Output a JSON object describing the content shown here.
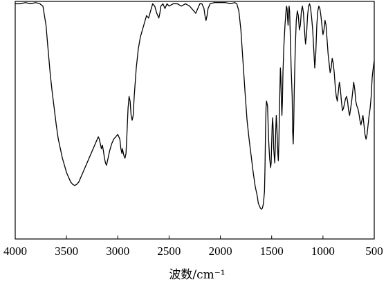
{
  "chart_data": {
    "type": "line",
    "title": "",
    "xlabel": "波数/cm⁻¹",
    "ylabel": "",
    "xlim": [
      4000,
      500
    ],
    "x_reversed": true,
    "ylim": [
      0,
      100
    ],
    "grid": false,
    "legend": "none",
    "x_ticks": [
      "4000",
      "3500",
      "3000",
      "2500",
      "2000",
      "1500",
      "1000",
      "500"
    ],
    "x_tick_values": [
      4000,
      3500,
      3000,
      2500,
      2000,
      1500,
      1000,
      500
    ],
    "series": [
      {
        "line_color": "#000000",
        "points": [
          [
            4000,
            99
          ],
          [
            3950,
            99
          ],
          [
            3900,
            99.5
          ],
          [
            3850,
            99
          ],
          [
            3800,
            99.5
          ],
          [
            3760,
            99
          ],
          [
            3730,
            98
          ],
          [
            3700,
            90
          ],
          [
            3680,
            80
          ],
          [
            3660,
            70
          ],
          [
            3640,
            62
          ],
          [
            3620,
            55
          ],
          [
            3600,
            48
          ],
          [
            3580,
            42
          ],
          [
            3560,
            38
          ],
          [
            3540,
            34
          ],
          [
            3520,
            31
          ],
          [
            3500,
            28
          ],
          [
            3480,
            26
          ],
          [
            3460,
            24
          ],
          [
            3440,
            23
          ],
          [
            3420,
            22.5
          ],
          [
            3400,
            23
          ],
          [
            3380,
            24
          ],
          [
            3360,
            26
          ],
          [
            3340,
            28
          ],
          [
            3320,
            30
          ],
          [
            3300,
            32
          ],
          [
            3280,
            34
          ],
          [
            3260,
            36
          ],
          [
            3240,
            38
          ],
          [
            3220,
            40
          ],
          [
            3200,
            42
          ],
          [
            3190,
            43
          ],
          [
            3180,
            42
          ],
          [
            3170,
            40
          ],
          [
            3160,
            38
          ],
          [
            3150,
            39.5
          ],
          [
            3140,
            37
          ],
          [
            3130,
            34
          ],
          [
            3120,
            32
          ],
          [
            3110,
            31
          ],
          [
            3100,
            33
          ],
          [
            3090,
            35
          ],
          [
            3080,
            37
          ],
          [
            3060,
            40
          ],
          [
            3040,
            42
          ],
          [
            3020,
            43
          ],
          [
            3000,
            44
          ],
          [
            2980,
            42
          ],
          [
            2970,
            38
          ],
          [
            2960,
            36
          ],
          [
            2955,
            38
          ],
          [
            2950,
            37
          ],
          [
            2940,
            35
          ],
          [
            2930,
            34
          ],
          [
            2920,
            36
          ],
          [
            2910,
            45
          ],
          [
            2900,
            55
          ],
          [
            2890,
            60
          ],
          [
            2880,
            58
          ],
          [
            2870,
            52
          ],
          [
            2860,
            50
          ],
          [
            2850,
            52
          ],
          [
            2840,
            60
          ],
          [
            2820,
            72
          ],
          [
            2800,
            80
          ],
          [
            2780,
            85
          ],
          [
            2760,
            88
          ],
          [
            2740,
            91
          ],
          [
            2720,
            94
          ],
          [
            2700,
            93
          ],
          [
            2680,
            96
          ],
          [
            2660,
            99
          ],
          [
            2640,
            98
          ],
          [
            2620,
            95
          ],
          [
            2600,
            93
          ],
          [
            2590,
            95
          ],
          [
            2580,
            98
          ],
          [
            2560,
            99
          ],
          [
            2540,
            97
          ],
          [
            2520,
            99
          ],
          [
            2500,
            98
          ],
          [
            2460,
            99
          ],
          [
            2420,
            99
          ],
          [
            2380,
            98
          ],
          [
            2340,
            99
          ],
          [
            2300,
            98
          ],
          [
            2260,
            96
          ],
          [
            2240,
            95
          ],
          [
            2220,
            97
          ],
          [
            2200,
            99
          ],
          [
            2180,
            99
          ],
          [
            2160,
            97
          ],
          [
            2150,
            94
          ],
          [
            2140,
            92
          ],
          [
            2130,
            94
          ],
          [
            2120,
            97
          ],
          [
            2100,
            99
          ],
          [
            2060,
            99.5
          ],
          [
            2000,
            99.5
          ],
          [
            1950,
            99.5
          ],
          [
            1900,
            99
          ],
          [
            1860,
            99.5
          ],
          [
            1840,
            99
          ],
          [
            1820,
            96
          ],
          [
            1800,
            88
          ],
          [
            1780,
            75
          ],
          [
            1760,
            62
          ],
          [
            1740,
            50
          ],
          [
            1720,
            42
          ],
          [
            1700,
            35
          ],
          [
            1680,
            28
          ],
          [
            1660,
            22
          ],
          [
            1640,
            18
          ],
          [
            1630,
            15
          ],
          [
            1620,
            14
          ],
          [
            1610,
            13
          ],
          [
            1600,
            12.5
          ],
          [
            1590,
            13
          ],
          [
            1580,
            15
          ],
          [
            1570,
            20
          ],
          [
            1565,
            30
          ],
          [
            1560,
            45
          ],
          [
            1555,
            55
          ],
          [
            1550,
            58
          ],
          [
            1540,
            56
          ],
          [
            1530,
            42
          ],
          [
            1520,
            34
          ],
          [
            1510,
            30
          ],
          [
            1505,
            32
          ],
          [
            1500,
            40
          ],
          [
            1495,
            48
          ],
          [
            1490,
            51
          ],
          [
            1485,
            46
          ],
          [
            1480,
            38
          ],
          [
            1470,
            32
          ],
          [
            1465,
            38
          ],
          [
            1460,
            46
          ],
          [
            1455,
            52
          ],
          [
            1450,
            48
          ],
          [
            1445,
            42
          ],
          [
            1440,
            36
          ],
          [
            1435,
            33
          ],
          [
            1430,
            40
          ],
          [
            1425,
            52
          ],
          [
            1420,
            62
          ],
          [
            1415,
            72
          ],
          [
            1410,
            68
          ],
          [
            1405,
            58
          ],
          [
            1400,
            52
          ],
          [
            1395,
            58
          ],
          [
            1390,
            70
          ],
          [
            1380,
            82
          ],
          [
            1370,
            90
          ],
          [
            1360,
            96
          ],
          [
            1355,
            98
          ],
          [
            1350,
            97
          ],
          [
            1345,
            93
          ],
          [
            1340,
            90
          ],
          [
            1335,
            95
          ],
          [
            1330,
            98
          ],
          [
            1325,
            96
          ],
          [
            1320,
            88
          ],
          [
            1310,
            72
          ],
          [
            1300,
            60
          ],
          [
            1295,
            45
          ],
          [
            1290,
            40
          ],
          [
            1285,
            48
          ],
          [
            1280,
            62
          ],
          [
            1270,
            80
          ],
          [
            1260,
            92
          ],
          [
            1250,
            96
          ],
          [
            1240,
            94
          ],
          [
            1230,
            88
          ],
          [
            1220,
            90
          ],
          [
            1210,
            96
          ],
          [
            1200,
            98
          ],
          [
            1190,
            95
          ],
          [
            1180,
            88
          ],
          [
            1170,
            82
          ],
          [
            1160,
            86
          ],
          [
            1150,
            94
          ],
          [
            1140,
            98
          ],
          [
            1130,
            99
          ],
          [
            1120,
            97
          ],
          [
            1110,
            93
          ],
          [
            1100,
            88
          ],
          [
            1090,
            80
          ],
          [
            1080,
            72
          ],
          [
            1070,
            78
          ],
          [
            1060,
            90
          ],
          [
            1050,
            96
          ],
          [
            1040,
            98
          ],
          [
            1030,
            97
          ],
          [
            1020,
            94
          ],
          [
            1010,
            90
          ],
          [
            1000,
            86
          ],
          [
            990,
            88
          ],
          [
            980,
            92
          ],
          [
            970,
            90
          ],
          [
            960,
            84
          ],
          [
            950,
            78
          ],
          [
            940,
            74
          ],
          [
            930,
            70
          ],
          [
            920,
            72
          ],
          [
            910,
            76
          ],
          [
            900,
            74
          ],
          [
            890,
            70
          ],
          [
            880,
            64
          ],
          [
            870,
            60
          ],
          [
            860,
            58
          ],
          [
            850,
            62
          ],
          [
            840,
            66
          ],
          [
            830,
            63
          ],
          [
            820,
            58
          ],
          [
            810,
            54
          ],
          [
            800,
            55
          ],
          [
            790,
            57
          ],
          [
            780,
            59
          ],
          [
            770,
            60
          ],
          [
            760,
            58
          ],
          [
            750,
            54
          ],
          [
            740,
            52
          ],
          [
            730,
            55
          ],
          [
            720,
            58
          ],
          [
            710,
            62
          ],
          [
            700,
            66
          ],
          [
            690,
            63
          ],
          [
            680,
            58
          ],
          [
            670,
            56
          ],
          [
            660,
            55
          ],
          [
            650,
            53
          ],
          [
            640,
            50
          ],
          [
            630,
            48
          ],
          [
            620,
            50
          ],
          [
            610,
            52
          ],
          [
            600,
            48
          ],
          [
            590,
            44
          ],
          [
            580,
            42
          ],
          [
            570,
            44
          ],
          [
            560,
            48
          ],
          [
            550,
            52
          ],
          [
            540,
            55
          ],
          [
            530,
            60
          ],
          [
            520,
            68
          ],
          [
            510,
            72
          ],
          [
            500,
            75
          ]
        ]
      }
    ]
  }
}
